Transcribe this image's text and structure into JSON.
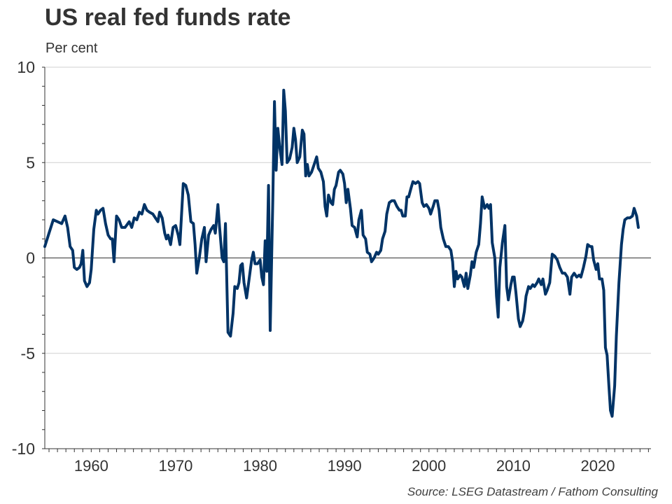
{
  "title": "US real fed funds rate",
  "subtitle": "Per cent",
  "source": "Source: LSEG Datastream / Fathom Consulting",
  "colors": {
    "line": "#003366",
    "grid": "#d0d0d0",
    "axis": "#333333"
  },
  "chart_data": {
    "type": "line",
    "title": "US real fed funds rate",
    "ylabel": "Per cent",
    "xlim": [
      1954.5,
      2026.3
    ],
    "ylim": [
      -10,
      10
    ],
    "yticks": [
      "10",
      "5",
      "0",
      "-5",
      "-10"
    ],
    "xticks": [
      "1960",
      "1970",
      "1980",
      "1990",
      "2000",
      "2010",
      "2020"
    ],
    "grid": true,
    "legend": "none",
    "series": [
      {
        "points": [
          [
            1954.5,
            0.6
          ],
          [
            1955.0,
            1.3
          ],
          [
            1955.5,
            2.0
          ],
          [
            1956.0,
            1.9
          ],
          [
            1956.5,
            1.8
          ],
          [
            1956.9,
            2.2
          ],
          [
            1957.2,
            1.6
          ],
          [
            1957.5,
            0.6
          ],
          [
            1957.8,
            0.4
          ],
          [
            1958.0,
            -0.5
          ],
          [
            1958.3,
            -0.6
          ],
          [
            1958.6,
            -0.5
          ],
          [
            1958.8,
            -0.3
          ],
          [
            1959.0,
            0.4
          ],
          [
            1959.2,
            -1.2
          ],
          [
            1959.5,
            -1.5
          ],
          [
            1959.8,
            -1.3
          ],
          [
            1960.0,
            -0.6
          ],
          [
            1960.3,
            1.5
          ],
          [
            1960.6,
            2.5
          ],
          [
            1960.8,
            2.3
          ],
          [
            1961.1,
            2.5
          ],
          [
            1961.4,
            2.6
          ],
          [
            1961.7,
            1.8
          ],
          [
            1962.0,
            1.2
          ],
          [
            1962.3,
            1.0
          ],
          [
            1962.5,
            1.0
          ],
          [
            1962.7,
            -0.2
          ],
          [
            1963.0,
            2.2
          ],
          [
            1963.3,
            2.0
          ],
          [
            1963.6,
            1.6
          ],
          [
            1964.0,
            1.6
          ],
          [
            1964.5,
            1.9
          ],
          [
            1964.8,
            1.6
          ],
          [
            1965.1,
            2.1
          ],
          [
            1965.4,
            2.0
          ],
          [
            1965.7,
            2.4
          ],
          [
            1966.0,
            2.3
          ],
          [
            1966.3,
            2.8
          ],
          [
            1966.6,
            2.5
          ],
          [
            1966.9,
            2.4
          ],
          [
            1967.3,
            2.3
          ],
          [
            1967.6,
            2.1
          ],
          [
            1967.9,
            1.9
          ],
          [
            1968.1,
            2.4
          ],
          [
            1968.4,
            2.1
          ],
          [
            1968.7,
            1.3
          ],
          [
            1968.9,
            1.0
          ],
          [
            1969.1,
            1.2
          ],
          [
            1969.4,
            0.7
          ],
          [
            1969.7,
            1.6
          ],
          [
            1970.0,
            1.7
          ],
          [
            1970.3,
            1.2
          ],
          [
            1970.5,
            0.7
          ],
          [
            1970.9,
            3.9
          ],
          [
            1971.2,
            3.8
          ],
          [
            1971.5,
            3.3
          ],
          [
            1971.8,
            1.9
          ],
          [
            1972.1,
            1.8
          ],
          [
            1972.3,
            0.7
          ],
          [
            1972.5,
            -0.8
          ],
          [
            1972.8,
            0.0
          ],
          [
            1973.1,
            1.0
          ],
          [
            1973.4,
            1.6
          ],
          [
            1973.6,
            -0.2
          ],
          [
            1973.9,
            1.2
          ],
          [
            1974.2,
            1.5
          ],
          [
            1974.5,
            1.7
          ],
          [
            1974.7,
            1.3
          ],
          [
            1975.0,
            2.8
          ],
          [
            1975.2,
            1.6
          ],
          [
            1975.5,
            0.0
          ],
          [
            1975.7,
            -0.2
          ],
          [
            1975.9,
            1.8
          ],
          [
            1976.2,
            -3.9
          ],
          [
            1976.5,
            -4.1
          ],
          [
            1976.8,
            -2.9
          ],
          [
            1977.0,
            -1.5
          ],
          [
            1977.3,
            -1.6
          ],
          [
            1977.5,
            -1.3
          ],
          [
            1977.7,
            -0.4
          ],
          [
            1977.9,
            -0.3
          ],
          [
            1978.1,
            -1.3
          ],
          [
            1978.4,
            -2.1
          ],
          [
            1978.7,
            -1.1
          ],
          [
            1979.0,
            -0.1
          ],
          [
            1979.2,
            0.3
          ],
          [
            1979.4,
            -0.3
          ],
          [
            1979.7,
            -0.3
          ],
          [
            1980.0,
            -0.1
          ],
          [
            1980.2,
            -1.0
          ],
          [
            1980.4,
            -1.4
          ],
          [
            1980.6,
            0.9
          ],
          [
            1980.8,
            -0.7
          ],
          [
            1981.0,
            3.8
          ],
          [
            1981.2,
            -3.8
          ],
          [
            1981.5,
            3.0
          ],
          [
            1981.7,
            8.2
          ],
          [
            1981.9,
            4.6
          ],
          [
            1982.1,
            6.8
          ],
          [
            1982.3,
            5.9
          ],
          [
            1982.6,
            4.9
          ],
          [
            1982.8,
            8.8
          ],
          [
            1983.0,
            7.7
          ],
          [
            1983.2,
            5.0
          ],
          [
            1983.5,
            5.2
          ],
          [
            1983.8,
            5.8
          ],
          [
            1984.0,
            6.8
          ],
          [
            1984.2,
            6.2
          ],
          [
            1984.4,
            5.0
          ],
          [
            1984.7,
            5.3
          ],
          [
            1985.0,
            6.7
          ],
          [
            1985.2,
            6.5
          ],
          [
            1985.4,
            4.3
          ],
          [
            1985.6,
            4.9
          ],
          [
            1985.8,
            4.3
          ],
          [
            1986.1,
            4.5
          ],
          [
            1986.4,
            4.9
          ],
          [
            1986.7,
            5.3
          ],
          [
            1986.9,
            4.7
          ],
          [
            1987.2,
            4.5
          ],
          [
            1987.5,
            4.0
          ],
          [
            1987.7,
            2.7
          ],
          [
            1987.9,
            2.2
          ],
          [
            1988.1,
            3.3
          ],
          [
            1988.4,
            2.9
          ],
          [
            1988.6,
            2.8
          ],
          [
            1988.8,
            3.6
          ],
          [
            1989.0,
            3.8
          ],
          [
            1989.3,
            4.5
          ],
          [
            1989.5,
            4.6
          ],
          [
            1989.8,
            4.4
          ],
          [
            1990.0,
            3.9
          ],
          [
            1990.2,
            2.9
          ],
          [
            1990.4,
            3.6
          ],
          [
            1990.7,
            2.6
          ],
          [
            1990.9,
            1.7
          ],
          [
            1991.2,
            1.6
          ],
          [
            1991.5,
            1.1
          ],
          [
            1991.7,
            2.0
          ],
          [
            1992.0,
            2.5
          ],
          [
            1992.2,
            1.2
          ],
          [
            1992.5,
            1.0
          ],
          [
            1992.7,
            0.3
          ],
          [
            1993.0,
            0.2
          ],
          [
            1993.2,
            -0.2
          ],
          [
            1993.5,
            0.0
          ],
          [
            1993.8,
            0.3
          ],
          [
            1994.0,
            0.2
          ],
          [
            1994.3,
            0.4
          ],
          [
            1994.5,
            1.0
          ],
          [
            1994.8,
            1.4
          ],
          [
            1995.0,
            2.3
          ],
          [
            1995.3,
            2.9
          ],
          [
            1995.6,
            3.0
          ],
          [
            1995.9,
            3.0
          ],
          [
            1996.2,
            2.7
          ],
          [
            1996.5,
            2.5
          ],
          [
            1996.7,
            2.5
          ],
          [
            1996.9,
            2.2
          ],
          [
            1997.2,
            2.2
          ],
          [
            1997.4,
            3.2
          ],
          [
            1997.6,
            3.2
          ],
          [
            1997.9,
            3.7
          ],
          [
            1998.1,
            4.0
          ],
          [
            1998.4,
            3.9
          ],
          [
            1998.7,
            4.0
          ],
          [
            1998.9,
            3.9
          ],
          [
            1999.2,
            2.9
          ],
          [
            1999.4,
            2.7
          ],
          [
            1999.7,
            2.8
          ],
          [
            2000.0,
            2.6
          ],
          [
            2000.2,
            2.3
          ],
          [
            2000.5,
            2.7
          ],
          [
            2000.7,
            3.0
          ],
          [
            2001.0,
            3.0
          ],
          [
            2001.2,
            2.5
          ],
          [
            2001.4,
            1.6
          ],
          [
            2001.7,
            1.0
          ],
          [
            2002.0,
            0.6
          ],
          [
            2002.3,
            0.6
          ],
          [
            2002.6,
            0.4
          ],
          [
            2002.8,
            -0.2
          ],
          [
            2003.0,
            -1.5
          ],
          [
            2003.2,
            -0.7
          ],
          [
            2003.4,
            -1.1
          ],
          [
            2003.7,
            -0.9
          ],
          [
            2003.9,
            -1.0
          ],
          [
            2004.2,
            -1.5
          ],
          [
            2004.4,
            -0.8
          ],
          [
            2004.6,
            -1.6
          ],
          [
            2004.9,
            -0.9
          ],
          [
            2005.1,
            -0.2
          ],
          [
            2005.3,
            -0.5
          ],
          [
            2005.6,
            0.3
          ],
          [
            2005.9,
            0.7
          ],
          [
            2006.1,
            1.8
          ],
          [
            2006.3,
            3.2
          ],
          [
            2006.6,
            2.6
          ],
          [
            2006.9,
            2.8
          ],
          [
            2007.1,
            2.6
          ],
          [
            2007.3,
            2.8
          ],
          [
            2007.5,
            0.8
          ],
          [
            2007.8,
            0.0
          ],
          [
            2008.0,
            -2.0
          ],
          [
            2008.2,
            -3.1
          ],
          [
            2008.4,
            -0.5
          ],
          [
            2008.7,
            0.8
          ],
          [
            2009.0,
            1.7
          ],
          [
            2009.2,
            -1.5
          ],
          [
            2009.4,
            -2.2
          ],
          [
            2009.7,
            -1.4
          ],
          [
            2009.9,
            -1.0
          ],
          [
            2010.1,
            -1.0
          ],
          [
            2010.3,
            -1.8
          ],
          [
            2010.6,
            -3.2
          ],
          [
            2010.8,
            -3.6
          ],
          [
            2011.1,
            -3.3
          ],
          [
            2011.3,
            -2.8
          ],
          [
            2011.5,
            -2.0
          ],
          [
            2011.8,
            -1.5
          ],
          [
            2012.0,
            -1.6
          ],
          [
            2012.3,
            -1.4
          ],
          [
            2012.5,
            -1.5
          ],
          [
            2012.8,
            -1.3
          ],
          [
            2013.0,
            -1.1
          ],
          [
            2013.3,
            -1.4
          ],
          [
            2013.5,
            -1.1
          ],
          [
            2013.8,
            -1.9
          ],
          [
            2014.0,
            -1.7
          ],
          [
            2014.3,
            -1.3
          ],
          [
            2014.6,
            0.2
          ],
          [
            2014.9,
            0.1
          ],
          [
            2015.2,
            -0.1
          ],
          [
            2015.5,
            -0.5
          ],
          [
            2015.8,
            -0.8
          ],
          [
            2016.1,
            -0.8
          ],
          [
            2016.4,
            -1.0
          ],
          [
            2016.7,
            -1.9
          ],
          [
            2016.9,
            -1.0
          ],
          [
            2017.2,
            -0.8
          ],
          [
            2017.5,
            -1.0
          ],
          [
            2017.8,
            -0.9
          ],
          [
            2018.0,
            -1.0
          ],
          [
            2018.3,
            -0.5
          ],
          [
            2018.6,
            0.1
          ],
          [
            2018.8,
            0.7
          ],
          [
            2019.1,
            0.6
          ],
          [
            2019.3,
            0.6
          ],
          [
            2019.5,
            -0.1
          ],
          [
            2019.8,
            -0.6
          ],
          [
            2020.0,
            -0.3
          ],
          [
            2020.2,
            -1.1
          ],
          [
            2020.5,
            -1.1
          ],
          [
            2020.7,
            -1.7
          ],
          [
            2020.9,
            -4.7
          ],
          [
            2021.1,
            -5.1
          ],
          [
            2021.3,
            -6.6
          ],
          [
            2021.5,
            -8.0
          ],
          [
            2021.7,
            -8.3
          ],
          [
            2022.0,
            -6.7
          ],
          [
            2022.2,
            -4.1
          ],
          [
            2022.5,
            -1.3
          ],
          [
            2022.8,
            0.7
          ],
          [
            2023.0,
            1.5
          ],
          [
            2023.2,
            2.0
          ],
          [
            2023.5,
            2.1
          ],
          [
            2023.8,
            2.1
          ],
          [
            2024.1,
            2.2
          ],
          [
            2024.3,
            2.6
          ],
          [
            2024.6,
            2.2
          ],
          [
            2024.8,
            1.6
          ]
        ]
      }
    ]
  }
}
